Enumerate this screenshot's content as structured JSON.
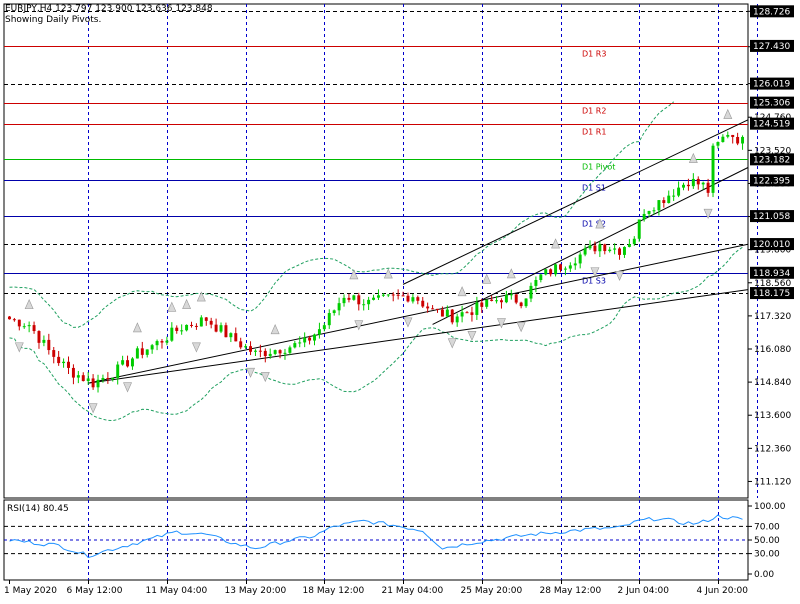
{
  "header": {
    "symbol_line": "EURJPY,H4  123.797 123.900 123.636 123.848",
    "pivot_note": "Showing Daily Pivots."
  },
  "rsi_panel": {
    "label": "RSI(14) 80.45"
  },
  "colors": {
    "background": "#ffffff",
    "grid": "#0000cc",
    "bull_candle": "#00cc00",
    "bear_candle": "#cc0000",
    "resistance": "#cc0000",
    "pivot": "#00bb00",
    "support": "#0000aa",
    "envelope": "#20a060",
    "rsi_line": "#1e90ff",
    "axis_text": "#000000"
  },
  "chart_data": [
    {
      "type": "candlestick",
      "title": "EURJPY,H4",
      "ylim": [
        110.5,
        129.0
      ],
      "y_ticks": [
        128.726,
        127.4,
        126.019,
        124.76,
        123.52,
        122.28,
        121.04,
        119.8,
        118.56,
        117.32,
        116.08,
        114.84,
        113.6,
        112.36,
        111.12
      ],
      "y_tick_labels": [
        "128.726",
        "127.400",
        "126.019",
        "124.760",
        "123.520",
        "122.280",
        "121.040",
        "119.800",
        "118.560",
        "117.320",
        "116.080",
        "114.840",
        "113.600",
        "112.360",
        "111.120"
      ],
      "x_tick_labels": [
        "1 May 2020",
        "6 May 12:00",
        "11 May 04:00",
        "13 May 20:00",
        "18 May 12:00",
        "21 May 04:00",
        "25 May 20:00",
        "28 May 12:00",
        "2 Jun 04:00",
        "4 Jun 20:00"
      ],
      "x_tick_bars": [
        0,
        16,
        32,
        48,
        64,
        80,
        96,
        112,
        128,
        144
      ],
      "bar_count": 150,
      "grid": true,
      "key_points": [
        {
          "bar": 0,
          "price": 117.2
        },
        {
          "bar": 4,
          "price": 117.0
        },
        {
          "bar": 8,
          "price": 116.0
        },
        {
          "bar": 12,
          "price": 115.3
        },
        {
          "bar": 17,
          "price": 114.8
        },
        {
          "bar": 22,
          "price": 115.3
        },
        {
          "bar": 26,
          "price": 115.9
        },
        {
          "bar": 30,
          "price": 116.3
        },
        {
          "bar": 35,
          "price": 116.9
        },
        {
          "bar": 40,
          "price": 117.2
        },
        {
          "bar": 45,
          "price": 116.5
        },
        {
          "bar": 50,
          "price": 115.9
        },
        {
          "bar": 55,
          "price": 116.1
        },
        {
          "bar": 60,
          "price": 116.3
        },
        {
          "bar": 64,
          "price": 117.0
        },
        {
          "bar": 68,
          "price": 118.1
        },
        {
          "bar": 73,
          "price": 117.8
        },
        {
          "bar": 78,
          "price": 118.0
        },
        {
          "bar": 82,
          "price": 118.1
        },
        {
          "bar": 86,
          "price": 117.5
        },
        {
          "bar": 90,
          "price": 117.3
        },
        {
          "bar": 95,
          "price": 117.6
        },
        {
          "bar": 100,
          "price": 118.0
        },
        {
          "bar": 104,
          "price": 117.9
        },
        {
          "bar": 108,
          "price": 118.8
        },
        {
          "bar": 112,
          "price": 119.2
        },
        {
          "bar": 116,
          "price": 119.6
        },
        {
          "bar": 120,
          "price": 120.0
        },
        {
          "bar": 124,
          "price": 119.8
        },
        {
          "bar": 127,
          "price": 120.3
        },
        {
          "bar": 129,
          "price": 121.3
        },
        {
          "bar": 132,
          "price": 121.6
        },
        {
          "bar": 135,
          "price": 122.0
        },
        {
          "bar": 138,
          "price": 122.4
        },
        {
          "bar": 141,
          "price": 122.2
        },
        {
          "bar": 142,
          "price": 122.0
        },
        {
          "bar": 143,
          "price": 123.5
        },
        {
          "bar": 146,
          "price": 124.2
        },
        {
          "bar": 149,
          "price": 123.85
        }
      ],
      "pivot_levels": [
        {
          "name": "D1 R3",
          "value": 127.43,
          "kind": "resistance"
        },
        {
          "name": "D1 R2",
          "value": 125.306,
          "kind": "resistance"
        },
        {
          "name": "D1 R1",
          "value": 124.519,
          "kind": "resistance"
        },
        {
          "name": "D1 Pivot",
          "value": 123.182,
          "kind": "pivot"
        },
        {
          "name": "D1 S1",
          "value": 122.395,
          "kind": "support"
        },
        {
          "name": "D1 S2",
          "value": 121.058,
          "kind": "support"
        },
        {
          "name": "D1 S3",
          "value": 118.934,
          "kind": "support"
        }
      ],
      "price_levels": [
        {
          "value": 128.726,
          "style": "dashed"
        },
        {
          "value": 126.019,
          "style": "dashed"
        },
        {
          "value": 120.01,
          "style": "dashed"
        },
        {
          "value": 118.175,
          "style": "dashed"
        }
      ],
      "highlighted_labels": [
        "128.726",
        "127.430",
        "126.019",
        "125.306",
        "124.519",
        "123.182",
        "122.395",
        "121.058",
        "120.010",
        "118.934",
        "118.175"
      ],
      "trend_lines": [
        {
          "from": {
            "bar": 16,
            "price": 114.8
          },
          "to": {
            "bar": 150,
            "price": 118.3
          },
          "extend": true
        },
        {
          "from": {
            "bar": 16,
            "price": 114.8
          },
          "to": {
            "bar": 150,
            "price": 120.0
          },
          "extend": true
        },
        {
          "from": {
            "bar": 80,
            "price": 118.5
          },
          "to": {
            "bar": 146,
            "price": 124.3
          },
          "extend": true
        },
        {
          "from": {
            "bar": 86,
            "price": 117.0
          },
          "to": {
            "bar": 146,
            "price": 122.5
          },
          "extend": true
        }
      ]
    },
    {
      "type": "line",
      "title": "RSI(14)",
      "last_value": 80.45,
      "ylim": [
        0,
        100
      ],
      "y_ticks": [
        100,
        70,
        50,
        30,
        0
      ],
      "y_tick_labels": [
        "100.00",
        "70.00",
        "50.00",
        "30.00",
        "0.00"
      ],
      "levels": [
        70,
        30
      ],
      "bars": [
        0,
        10,
        16,
        20,
        28,
        34,
        40,
        46,
        50,
        56,
        62,
        66,
        72,
        78,
        84,
        88,
        94,
        100,
        106,
        112,
        118,
        124,
        128,
        132,
        136,
        140,
        144,
        149
      ],
      "values": [
        50,
        42,
        27,
        35,
        50,
        62,
        58,
        44,
        38,
        48,
        56,
        70,
        78,
        72,
        64,
        38,
        46,
        52,
        58,
        62,
        66,
        68,
        78,
        82,
        76,
        74,
        85,
        80.45
      ]
    }
  ]
}
